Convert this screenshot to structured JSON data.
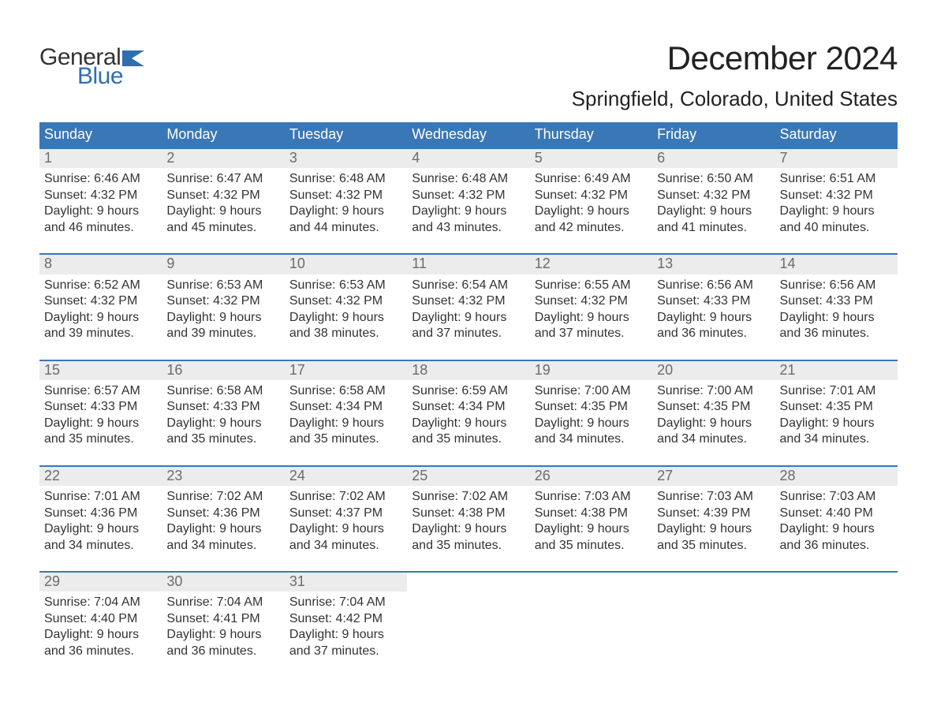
{
  "logo": {
    "word1": "General",
    "word2": "Blue",
    "flag_color": "#2f6fb0",
    "text_color_word1": "#333333",
    "text_color_word2": "#2f6fb0"
  },
  "title": "December 2024",
  "location": "Springfield, Colorado, United States",
  "colors": {
    "header_bg": "#3a77b7",
    "header_text": "#ffffff",
    "daynum_bg": "#ececec",
    "daynum_text": "#6b6b6b",
    "body_text": "#333333",
    "week_border": "#3a77b7",
    "page_bg": "#ffffff"
  },
  "fonts": {
    "title_size_pt": 32,
    "location_size_pt": 20,
    "dow_size_pt": 14,
    "body_size_pt": 12
  },
  "days_of_week": [
    "Sunday",
    "Monday",
    "Tuesday",
    "Wednesday",
    "Thursday",
    "Friday",
    "Saturday"
  ],
  "labels": {
    "sunrise": "Sunrise: ",
    "sunset": "Sunset: ",
    "daylight_prefix": "Daylight: ",
    "daylight_mid": " hours and ",
    "daylight_suffix": " minutes."
  },
  "weeks": [
    [
      {
        "n": 1,
        "sunrise": "6:46 AM",
        "sunset": "4:32 PM",
        "dh": 9,
        "dm": 46
      },
      {
        "n": 2,
        "sunrise": "6:47 AM",
        "sunset": "4:32 PM",
        "dh": 9,
        "dm": 45
      },
      {
        "n": 3,
        "sunrise": "6:48 AM",
        "sunset": "4:32 PM",
        "dh": 9,
        "dm": 44
      },
      {
        "n": 4,
        "sunrise": "6:48 AM",
        "sunset": "4:32 PM",
        "dh": 9,
        "dm": 43
      },
      {
        "n": 5,
        "sunrise": "6:49 AM",
        "sunset": "4:32 PM",
        "dh": 9,
        "dm": 42
      },
      {
        "n": 6,
        "sunrise": "6:50 AM",
        "sunset": "4:32 PM",
        "dh": 9,
        "dm": 41
      },
      {
        "n": 7,
        "sunrise": "6:51 AM",
        "sunset": "4:32 PM",
        "dh": 9,
        "dm": 40
      }
    ],
    [
      {
        "n": 8,
        "sunrise": "6:52 AM",
        "sunset": "4:32 PM",
        "dh": 9,
        "dm": 39
      },
      {
        "n": 9,
        "sunrise": "6:53 AM",
        "sunset": "4:32 PM",
        "dh": 9,
        "dm": 39
      },
      {
        "n": 10,
        "sunrise": "6:53 AM",
        "sunset": "4:32 PM",
        "dh": 9,
        "dm": 38
      },
      {
        "n": 11,
        "sunrise": "6:54 AM",
        "sunset": "4:32 PM",
        "dh": 9,
        "dm": 37
      },
      {
        "n": 12,
        "sunrise": "6:55 AM",
        "sunset": "4:32 PM",
        "dh": 9,
        "dm": 37
      },
      {
        "n": 13,
        "sunrise": "6:56 AM",
        "sunset": "4:33 PM",
        "dh": 9,
        "dm": 36
      },
      {
        "n": 14,
        "sunrise": "6:56 AM",
        "sunset": "4:33 PM",
        "dh": 9,
        "dm": 36
      }
    ],
    [
      {
        "n": 15,
        "sunrise": "6:57 AM",
        "sunset": "4:33 PM",
        "dh": 9,
        "dm": 35
      },
      {
        "n": 16,
        "sunrise": "6:58 AM",
        "sunset": "4:33 PM",
        "dh": 9,
        "dm": 35
      },
      {
        "n": 17,
        "sunrise": "6:58 AM",
        "sunset": "4:34 PM",
        "dh": 9,
        "dm": 35
      },
      {
        "n": 18,
        "sunrise": "6:59 AM",
        "sunset": "4:34 PM",
        "dh": 9,
        "dm": 35
      },
      {
        "n": 19,
        "sunrise": "7:00 AM",
        "sunset": "4:35 PM",
        "dh": 9,
        "dm": 34
      },
      {
        "n": 20,
        "sunrise": "7:00 AM",
        "sunset": "4:35 PM",
        "dh": 9,
        "dm": 34
      },
      {
        "n": 21,
        "sunrise": "7:01 AM",
        "sunset": "4:35 PM",
        "dh": 9,
        "dm": 34
      }
    ],
    [
      {
        "n": 22,
        "sunrise": "7:01 AM",
        "sunset": "4:36 PM",
        "dh": 9,
        "dm": 34
      },
      {
        "n": 23,
        "sunrise": "7:02 AM",
        "sunset": "4:36 PM",
        "dh": 9,
        "dm": 34
      },
      {
        "n": 24,
        "sunrise": "7:02 AM",
        "sunset": "4:37 PM",
        "dh": 9,
        "dm": 34
      },
      {
        "n": 25,
        "sunrise": "7:02 AM",
        "sunset": "4:38 PM",
        "dh": 9,
        "dm": 35
      },
      {
        "n": 26,
        "sunrise": "7:03 AM",
        "sunset": "4:38 PM",
        "dh": 9,
        "dm": 35
      },
      {
        "n": 27,
        "sunrise": "7:03 AM",
        "sunset": "4:39 PM",
        "dh": 9,
        "dm": 35
      },
      {
        "n": 28,
        "sunrise": "7:03 AM",
        "sunset": "4:40 PM",
        "dh": 9,
        "dm": 36
      }
    ],
    [
      {
        "n": 29,
        "sunrise": "7:04 AM",
        "sunset": "4:40 PM",
        "dh": 9,
        "dm": 36
      },
      {
        "n": 30,
        "sunrise": "7:04 AM",
        "sunset": "4:41 PM",
        "dh": 9,
        "dm": 36
      },
      {
        "n": 31,
        "sunrise": "7:04 AM",
        "sunset": "4:42 PM",
        "dh": 9,
        "dm": 37
      },
      null,
      null,
      null,
      null
    ]
  ]
}
